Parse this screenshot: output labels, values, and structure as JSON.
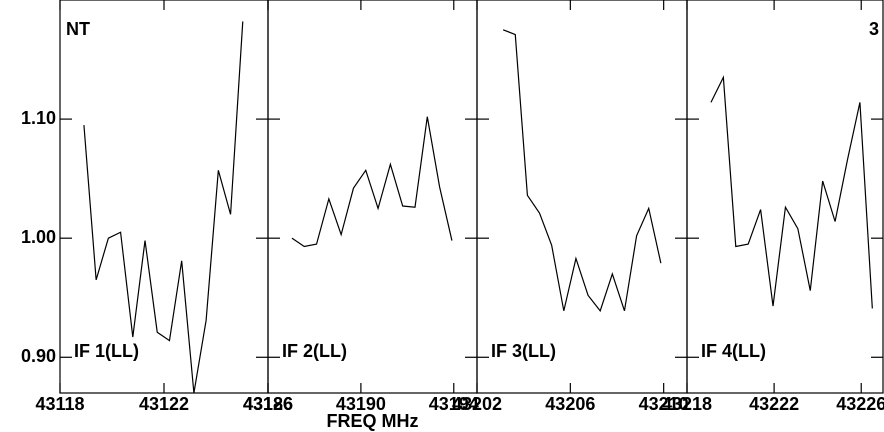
{
  "chart_data": [
    {
      "type": "line",
      "label": "IF 1(LL)",
      "annotation": "NT",
      "x": [
        43118.92,
        43119.39,
        43119.86,
        43120.33,
        43120.8,
        43121.27,
        43121.74,
        43122.21,
        43122.68,
        43123.15,
        43123.62,
        43124.09,
        43124.56,
        43125.03
      ],
      "values": [
        1.095,
        0.965,
        1.0,
        1.005,
        0.917,
        0.998,
        0.921,
        0.914,
        0.981,
        0.87,
        0.931,
        1.057,
        1.02,
        1.182
      ],
      "color": "#000000",
      "xlim": [
        43118,
        43126
      ],
      "xticks": [
        43118,
        43122,
        43126
      ],
      "ylim": [
        0.87,
        1.2
      ],
      "yticks": [
        {
          "value": 0.9,
          "label": "0.90"
        },
        {
          "value": 1.0,
          "label": "1.00"
        },
        {
          "value": 1.1,
          "label": "1.10"
        }
      ]
    },
    {
      "type": "line",
      "label": "IF 2(LL)",
      "xlabel": "FREQ MHz",
      "x": [
        43187.03,
        43187.56,
        43188.09,
        43188.62,
        43189.15,
        43189.68,
        43190.21,
        43190.74,
        43191.27,
        43191.8,
        43192.33,
        43192.86,
        43193.39,
        43193.92
      ],
      "values": [
        1.0,
        0.993,
        0.995,
        1.033,
        1.003,
        1.042,
        1.057,
        1.025,
        1.062,
        1.027,
        1.026,
        1.102,
        1.043,
        0.998
      ],
      "color": "#000000",
      "xlim": [
        43186,
        43195
      ],
      "xticks": [
        43186,
        43190,
        43194
      ],
      "ylim": [
        0.87,
        1.2
      ]
    },
    {
      "type": "line",
      "label": "IF 3(LL)",
      "x": [
        43203.12,
        43203.64,
        43204.16,
        43204.68,
        43205.2,
        43205.72,
        43206.24,
        43206.76,
        43207.28,
        43207.8,
        43208.32,
        43208.84,
        43209.36,
        43209.88
      ],
      "values": [
        1.175,
        1.171,
        1.036,
        1.021,
        0.994,
        0.939,
        0.983,
        0.952,
        0.939,
        0.97,
        0.939,
        1.002,
        1.025,
        0.979
      ],
      "color": "#000000",
      "xlim": [
        43202,
        43211
      ],
      "xticks": [
        43202,
        43206,
        43210
      ],
      "ylim": [
        0.87,
        1.2
      ]
    },
    {
      "type": "line",
      "label": "IF 4(LL)",
      "annotation": "3",
      "x": [
        43219.1,
        43219.67,
        43220.24,
        43220.81,
        43221.38,
        43221.95,
        43222.52,
        43223.09,
        43223.66,
        43224.23,
        43224.8,
        43225.37,
        43225.94,
        43226.51
      ],
      "values": [
        1.114,
        1.135,
        0.993,
        0.995,
        1.024,
        0.943,
        1.026,
        1.008,
        0.956,
        1.048,
        1.014,
        1.066,
        1.114,
        0.941
      ],
      "color": "#000000",
      "xlim": [
        43218,
        43227
      ],
      "xticks": [
        43218,
        43222,
        43226
      ],
      "ylim": [
        0.87,
        1.2
      ]
    }
  ]
}
